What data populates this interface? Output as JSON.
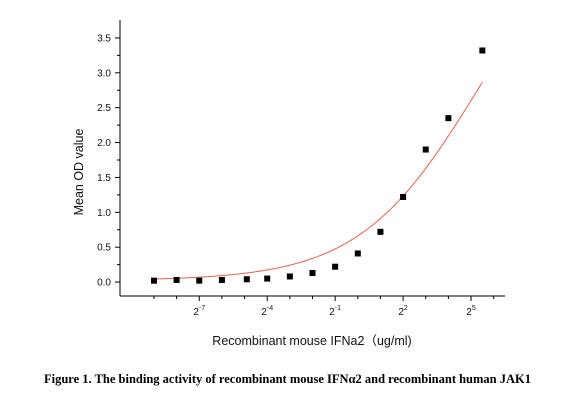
{
  "chart_data": {
    "type": "scatter",
    "title": "",
    "xlabel": "Recombinant mouse  IFNa2（ug/ml)",
    "ylabel": "Mean OD value",
    "x_scale": "log2",
    "xlim_log2": [
      -10.5,
      6.5
    ],
    "ylim": [
      -0.2,
      3.7
    ],
    "y_ticks": [
      "0.0",
      "0.5",
      "1.0",
      "1.5",
      "2.0",
      "2.5",
      "3.0",
      "3.5"
    ],
    "x_ticks": [
      {
        "base": "2",
        "exp": "-7",
        "log2": -7
      },
      {
        "base": "2",
        "exp": "-4",
        "log2": -4
      },
      {
        "base": "2",
        "exp": "-1",
        "log2": -1
      },
      {
        "base": "2",
        "exp": "2",
        "log2": 2
      },
      {
        "base": "2",
        "exp": "5",
        "log2": 5
      }
    ],
    "series": [
      {
        "marker": "square",
        "color": "#000000",
        "points": [
          {
            "log2x": -9.0,
            "y": 0.02
          },
          {
            "log2x": -8.0,
            "y": 0.03
          },
          {
            "log2x": -7.0,
            "y": 0.02
          },
          {
            "log2x": -6.0,
            "y": 0.03
          },
          {
            "log2x": -4.9,
            "y": 0.04
          },
          {
            "log2x": -4.0,
            "y": 0.05
          },
          {
            "log2x": -3.0,
            "y": 0.08
          },
          {
            "log2x": -2.0,
            "y": 0.13
          },
          {
            "log2x": -1.0,
            "y": 0.22
          },
          {
            "log2x": 0.0,
            "y": 0.41
          },
          {
            "log2x": 1.0,
            "y": 0.72
          },
          {
            "log2x": 2.0,
            "y": 1.22
          },
          {
            "log2x": 3.0,
            "y": 1.9
          },
          {
            "log2x": 4.0,
            "y": 2.35
          },
          {
            "log2x": 5.5,
            "y": 3.32
          }
        ]
      }
    ],
    "fit_curve": {
      "color": "#e8614f",
      "model": "4PL",
      "bottom": 0.02,
      "top": 5.5,
      "ec50_log2": 5.3,
      "hill_log2": 0.55,
      "range_log2": [
        -9.0,
        5.5
      ]
    }
  },
  "caption": "Figure 1. The binding activity of recombinant mouse IFNα2 and recombinant human JAK1"
}
